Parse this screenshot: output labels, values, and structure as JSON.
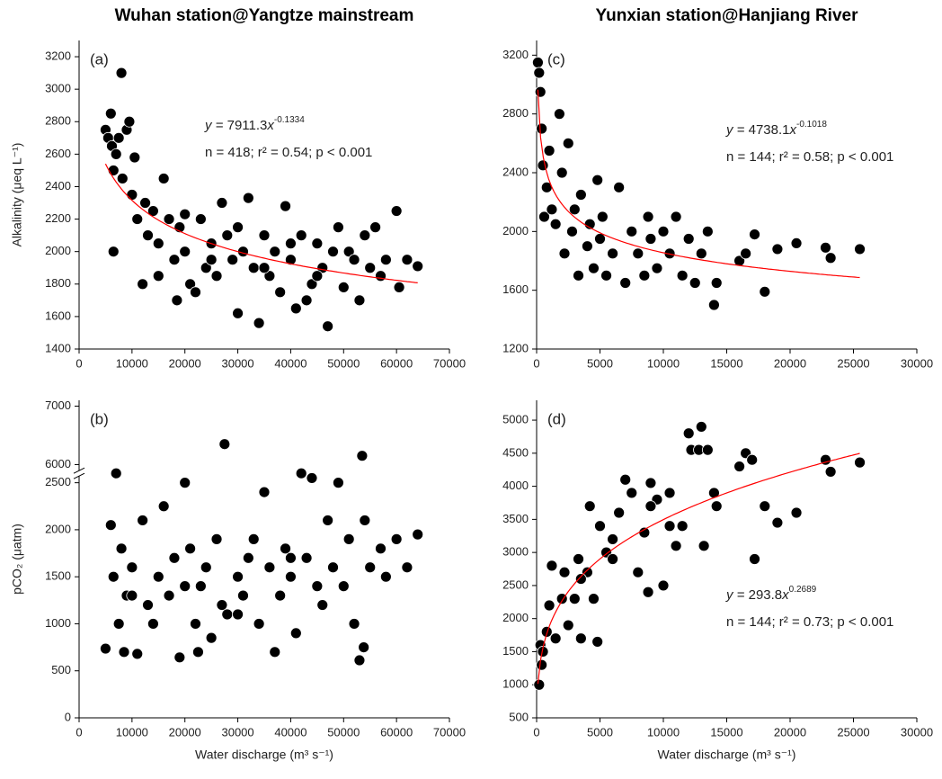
{
  "chart_data": [
    {
      "type": "scatter",
      "title": "Wuhan station@Yangtze mainstream",
      "panel_label": "(a)",
      "ylabel": "Alkalinity (μeq L⁻¹)",
      "xlim": [
        0,
        70000
      ],
      "xticks": [
        0,
        10000,
        20000,
        30000,
        40000,
        50000,
        60000,
        70000
      ],
      "ylim": [
        1400,
        3300
      ],
      "yticks": [
        1400,
        1600,
        1800,
        2000,
        2200,
        2400,
        2600,
        2800,
        3000,
        3200
      ],
      "series": [
        {
          "color": "#000000",
          "x": [
            5000,
            5500,
            6000,
            6200,
            6500,
            7000,
            7500,
            8000,
            8200,
            9000,
            9500,
            6500,
            10000,
            10500,
            11000,
            12000,
            12500,
            13000,
            14000,
            15000,
            16000,
            17000,
            18000,
            18500,
            19000,
            20000,
            21000,
            22000,
            23000,
            24000,
            25000,
            26000,
            27000,
            28000,
            29000,
            30000,
            31000,
            32000,
            33000,
            34000,
            35000,
            36000,
            37000,
            38000,
            39000,
            40000,
            41000,
            42000,
            43000,
            44000,
            45000,
            46000,
            47000,
            48000,
            49000,
            50000,
            51000,
            52000,
            53000,
            54000,
            55000,
            56000,
            57000,
            58000,
            60000,
            60500,
            62000,
            64000,
            15000,
            20000,
            25000,
            30000,
            35000,
            40000,
            45000
          ],
          "values": [
            2750,
            2700,
            2850,
            2650,
            2500,
            2600,
            2700,
            3100,
            2450,
            2750,
            2800,
            2000,
            2350,
            2580,
            2200,
            1800,
            2300,
            2100,
            2250,
            1850,
            2450,
            2200,
            1950,
            1700,
            2150,
            2000,
            1800,
            1750,
            2200,
            1900,
            2050,
            1850,
            2300,
            2100,
            1950,
            1620,
            2000,
            2330,
            1900,
            1560,
            2100,
            1850,
            2000,
            1750,
            2280,
            1950,
            1650,
            2100,
            1700,
            1800,
            2050,
            1900,
            1540,
            2000,
            2150,
            1780,
            2000,
            1950,
            1700,
            2100,
            1900,
            2150,
            1850,
            1950,
            2250,
            1780,
            1950,
            1910,
            2050,
            2230,
            1950,
            2150,
            1900,
            2050,
            1850
          ]
        }
      ],
      "fit": {
        "color": "#ff0000",
        "xlim": [
          5000,
          64000
        ],
        "lhs": "y = ",
        "a": 7911.3,
        "var": "x",
        "b": -0.1334,
        "stats": "n = 418; r² = 0.54; p < 0.001"
      }
    },
    {
      "type": "scatter",
      "panel_label": "(b)",
      "ylabel": "pCO₂ (μatm)",
      "xlabel": "Water discharge (m³ s⁻¹)",
      "xlim": [
        0,
        70000
      ],
      "xticks": [
        0,
        10000,
        20000,
        30000,
        40000,
        50000,
        60000,
        70000
      ],
      "ylim": [
        0,
        7100
      ],
      "ybreak": [
        2600,
        5850
      ],
      "yticks": [
        0,
        500,
        1000,
        1500,
        2000,
        2500,
        6000,
        7000
      ],
      "series": [
        {
          "color": "#000000",
          "x": [
            5000,
            6000,
            6500,
            7000,
            7500,
            8000,
            8500,
            9000,
            10000,
            11000,
            12000,
            13000,
            14000,
            15000,
            16000,
            17000,
            18000,
            19000,
            20000,
            21000,
            22000,
            22500,
            23000,
            24000,
            25000,
            26000,
            27000,
            27500,
            28000,
            30000,
            31000,
            32000,
            33000,
            34000,
            35000,
            36000,
            37000,
            38000,
            39000,
            40000,
            41000,
            42000,
            43000,
            44000,
            45000,
            46000,
            47000,
            48000,
            49000,
            50000,
            51000,
            52000,
            53000,
            53500,
            53800,
            54000,
            55000,
            57000,
            58000,
            60000,
            62000,
            64000,
            10000,
            20000,
            30000,
            40000
          ],
          "values": [
            2850,
            2050,
            1500,
            2600,
            1000,
            1800,
            700,
            1300,
            1600,
            680,
            2100,
            1200,
            1000,
            1500,
            2250,
            1300,
            1700,
            2700,
            2500,
            1800,
            1000,
            700,
            1400,
            1600,
            850,
            1900,
            1200,
            6350,
            1100,
            1500,
            1300,
            1700,
            1900,
            1000,
            2400,
            1600,
            700,
            1300,
            1800,
            1500,
            900,
            2600,
            1700,
            2550,
            1400,
            1200,
            2100,
            1600,
            2500,
            1400,
            1900,
            1000,
            2650,
            6150,
            750,
            2100,
            1600,
            1800,
            1500,
            1900,
            1600,
            1950,
            1300,
            1400,
            1100,
            1700
          ]
        }
      ]
    },
    {
      "type": "scatter",
      "title": "Yunxian station@Hanjiang River",
      "panel_label": "(c)",
      "xlim": [
        0,
        30000
      ],
      "xticks": [
        0,
        5000,
        10000,
        15000,
        20000,
        25000,
        30000
      ],
      "ylim": [
        1200,
        3300
      ],
      "yticks": [
        1200,
        1600,
        2000,
        2400,
        2800,
        3200
      ],
      "series": [
        {
          "color": "#000000",
          "x": [
            100,
            200,
            300,
            400,
            500,
            600,
            800,
            1000,
            1200,
            1500,
            1800,
            2000,
            2200,
            2500,
            2800,
            3000,
            3300,
            3500,
            4000,
            4200,
            4500,
            4800,
            5000,
            5200,
            5500,
            6000,
            6500,
            7000,
            7500,
            8000,
            8500,
            8800,
            9000,
            9500,
            10000,
            10500,
            11000,
            11500,
            12000,
            12500,
            13000,
            13500,
            14000,
            14200,
            16000,
            16500,
            17200,
            18000,
            19000,
            20500,
            22800,
            23200,
            25500
          ],
          "values": [
            3150,
            3080,
            2950,
            2700,
            2450,
            2100,
            2300,
            2550,
            2150,
            2050,
            2800,
            2400,
            1850,
            2600,
            2000,
            2150,
            1700,
            2250,
            1900,
            2050,
            1750,
            2350,
            1950,
            2100,
            1700,
            1850,
            2300,
            1650,
            2000,
            1850,
            1700,
            2100,
            1950,
            1750,
            2000,
            1850,
            2100,
            1700,
            1950,
            1650,
            1850,
            2000,
            1500,
            1650,
            1800,
            1850,
            1980,
            1590,
            1880,
            1920,
            1890,
            1820,
            1880
          ]
        }
      ],
      "fit": {
        "color": "#ff0000",
        "xlim": [
          100,
          25500
        ],
        "lhs": "y = ",
        "a": 4738.1,
        "var": "x",
        "b": -0.1018,
        "stats": "n = 144; r² = 0.58; p < 0.001"
      }
    },
    {
      "type": "scatter",
      "panel_label": "(d)",
      "xlabel": "Water discharge (m³ s⁻¹)",
      "xlim": [
        0,
        30000
      ],
      "xticks": [
        0,
        5000,
        10000,
        15000,
        20000,
        25000,
        30000
      ],
      "ylim": [
        500,
        5300
      ],
      "yticks": [
        500,
        1000,
        1500,
        2000,
        2500,
        3000,
        3500,
        4000,
        4500,
        5000
      ],
      "series": [
        {
          "color": "#000000",
          "x": [
            200,
            300,
            400,
            500,
            800,
            1000,
            1200,
            1500,
            2000,
            2200,
            2500,
            3000,
            3300,
            3500,
            4000,
            4200,
            4500,
            4800,
            5000,
            5500,
            6000,
            6500,
            7000,
            7500,
            8000,
            8500,
            8800,
            9000,
            9500,
            10000,
            10500,
            11000,
            11500,
            12000,
            12200,
            12800,
            13000,
            13200,
            13500,
            14000,
            14200,
            16000,
            16500,
            17000,
            17200,
            18000,
            19000,
            20500,
            22800,
            23200,
            25500,
            9000,
            6000,
            3500,
            10500
          ],
          "values": [
            1000,
            1600,
            1300,
            1500,
            1800,
            2200,
            2800,
            1700,
            2300,
            2700,
            1900,
            2300,
            2900,
            1700,
            2700,
            3700,
            2300,
            1650,
            3400,
            3000,
            3200,
            3600,
            4100,
            3900,
            2700,
            3300,
            2400,
            4050,
            3800,
            2500,
            3900,
            3100,
            3400,
            4800,
            4550,
            4550,
            4900,
            3100,
            4550,
            3900,
            3700,
            4300,
            4500,
            4400,
            2900,
            3700,
            3450,
            3600,
            4400,
            4220,
            4360,
            3700,
            2900,
            2600,
            3400
          ]
        }
      ],
      "fit": {
        "color": "#ff0000",
        "xlim": [
          100,
          25500
        ],
        "lhs": "y = ",
        "a": 293.8,
        "var": "x",
        "b": 0.2689,
        "stats": "n = 144; r² = 0.73; p < 0.001"
      }
    }
  ]
}
